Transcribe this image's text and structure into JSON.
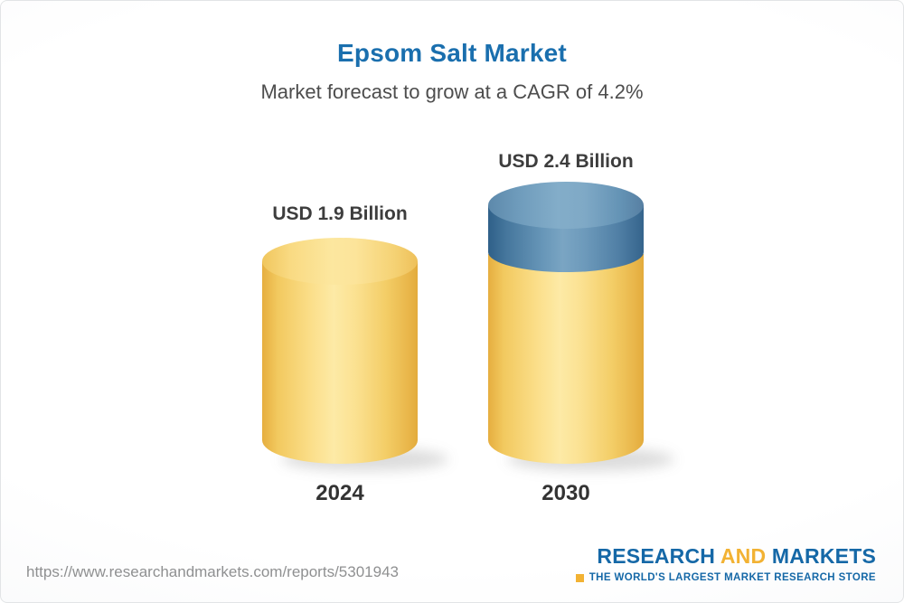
{
  "header": {
    "title": "Epsom Salt Market",
    "subtitle": "Market forecast to grow at a CAGR of 4.2%"
  },
  "chart_data": {
    "type": "bar",
    "subtype": "3d-cylinder",
    "title": "Epsom Salt Market",
    "subtitle": "Market forecast to grow at a CAGR of 4.2%",
    "categories": [
      "2024",
      "2030"
    ],
    "values": [
      1.9,
      2.4
    ],
    "value_unit": "USD Billion",
    "value_labels": [
      "USD 1.9 Billion",
      "USD 2.4 Billion"
    ],
    "cagr_pct": 4.2,
    "legend": "none",
    "grid": "off",
    "colors": {
      "base_segment": "#F5CE6A",
      "growth_segment": "#4C7FA6",
      "title_accent": "#1A6FAE"
    }
  },
  "footer": {
    "url": "https://www.researchandmarkets.com/reports/5301943",
    "logo": {
      "word1": "RESEARCH",
      "word2": "AND",
      "word3": "MARKETS",
      "tagline": "THE WORLD'S LARGEST MARKET RESEARCH STORE"
    }
  }
}
